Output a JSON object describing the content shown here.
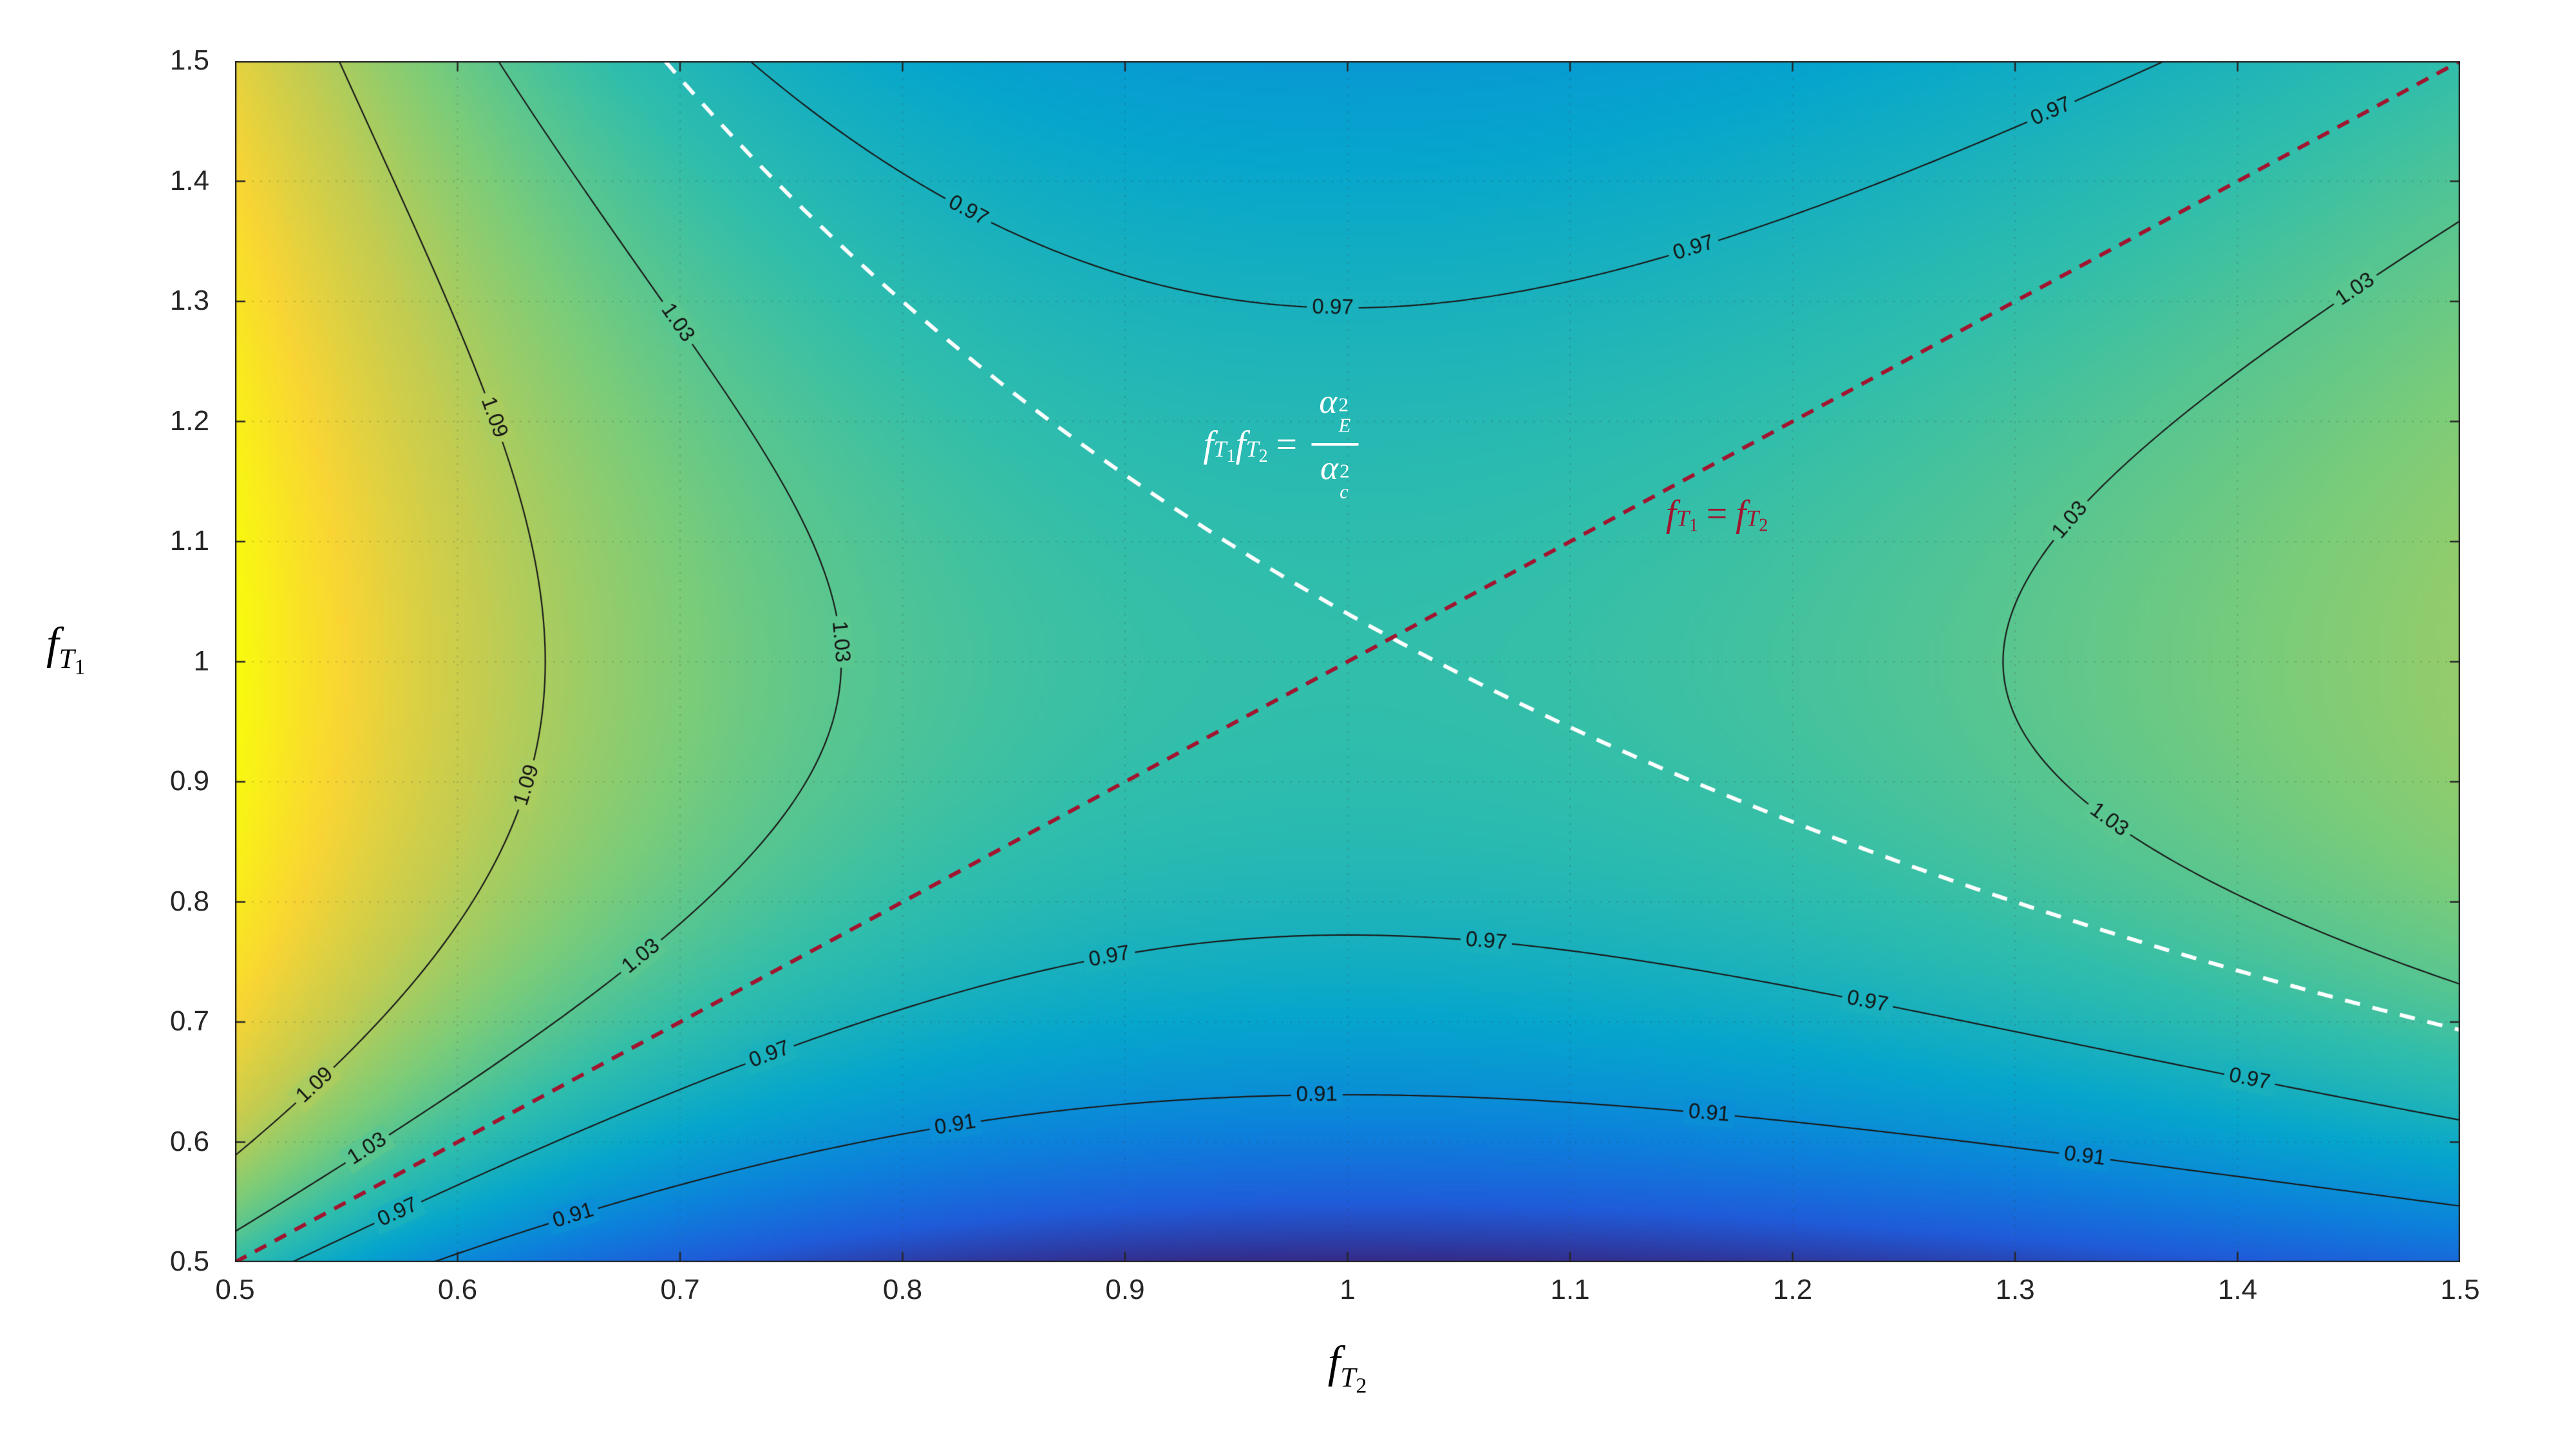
{
  "figure": {
    "background": "#ffffff",
    "frame": {
      "border_color": "#262626",
      "tick_color": "#262626",
      "tick_label_color": "#262626"
    }
  },
  "chart_data": {
    "type": "heatmap",
    "subtype": "filled-contour-with-lines",
    "title": "",
    "x_axis": {
      "label_base": "f",
      "label_sub": "T",
      "label_subsub": "2",
      "min": 0.5,
      "max": 1.5,
      "tick_values": [
        0.5,
        0.6,
        0.7,
        0.8,
        0.9,
        1,
        1.1,
        1.2,
        1.3,
        1.4,
        1.5
      ],
      "tick_labels": [
        "0.5",
        "0.6",
        "0.7",
        "0.8",
        "0.9",
        "1",
        "1.1",
        "1.2",
        "1.3",
        "1.4",
        "1.5"
      ]
    },
    "y_axis": {
      "label_base": "f",
      "label_sub": "T",
      "label_subsub": "1",
      "min": 0.5,
      "max": 1.5,
      "tick_values": [
        0.5,
        0.6,
        0.7,
        0.8,
        0.9,
        1,
        1.1,
        1.2,
        1.3,
        1.4,
        1.5
      ],
      "tick_labels": [
        "0.5",
        "0.6",
        "0.7",
        "0.8",
        "0.9",
        "1",
        "1.1",
        "1.2",
        "1.3",
        "1.4",
        "1.5"
      ]
    },
    "field": {
      "description": "f(x,y) = 1 - c*ln(x*y)*ln(y/x); saddle at (1,1) with value 1; asymptote lines y=x and x*y=k",
      "c": 0.45,
      "vmin": 0.784,
      "vmax": 1.216
    },
    "colormap": {
      "name": "parula",
      "stops": [
        "#352a87",
        "#205bd9",
        "#0c82db",
        "#06a6cd",
        "#31beab",
        "#7acc7a",
        "#c3cc51",
        "#f9d534",
        "#f9fb0e"
      ]
    },
    "grid": {
      "step": 0.1,
      "color": "rgba(60,60,60,0.22)"
    },
    "contours": {
      "levels": [
        0.91,
        0.97,
        1.03,
        1.09
      ],
      "line_color": "#1a1a1a",
      "label_color": "#141414",
      "labels": [
        {
          "text": "0.97",
          "x": 0.83,
          "y": 1.376
        },
        {
          "text": "0.97",
          "x": 0.993,
          "y": 1.285
        },
        {
          "text": "0.97",
          "x": 1.163,
          "y": 1.332
        },
        {
          "text": "0.97",
          "x": 1.321,
          "y": 1.452
        },
        {
          "text": "1.03",
          "x": 0.701,
          "y": 1.283
        },
        {
          "text": "1.09",
          "x": 0.624,
          "y": 1.205
        },
        {
          "text": "1.03",
          "x": 0.779,
          "y": 1.017
        },
        {
          "text": "1.09",
          "x": 0.648,
          "y": 0.894
        },
        {
          "text": "1.03",
          "x": 0.689,
          "y": 0.75
        },
        {
          "text": "1.09",
          "x": 0.546,
          "y": 0.641
        },
        {
          "text": "1.03",
          "x": 0.561,
          "y": 0.593
        },
        {
          "text": "0.97",
          "x": 0.576,
          "y": 0.538
        },
        {
          "text": "0.97",
          "x": 0.727,
          "y": 0.689
        },
        {
          "text": "0.91",
          "x": 0.654,
          "y": 0.535
        },
        {
          "text": "0.91",
          "x": 0.824,
          "y": 0.613
        },
        {
          "text": "0.97",
          "x": 0.892,
          "y": 0.757
        },
        {
          "text": "0.97",
          "x": 1.063,
          "y": 0.771
        },
        {
          "text": "0.91",
          "x": 0.986,
          "y": 0.647
        },
        {
          "text": "0.91",
          "x": 1.163,
          "y": 0.627
        },
        {
          "text": "0.97",
          "x": 1.236,
          "y": 0.723
        },
        {
          "text": "0.91",
          "x": 1.336,
          "y": 0.606
        },
        {
          "text": "0.97",
          "x": 1.406,
          "y": 0.654
        },
        {
          "text": "1.03",
          "x": 1.443,
          "y": 1.318
        },
        {
          "text": "1.03",
          "x": 1.307,
          "y": 1.127
        },
        {
          "text": "1.03",
          "x": 1.332,
          "y": 0.86
        }
      ]
    },
    "reference_lines": {
      "identity": {
        "equation": "y = x",
        "color": "#a2142f",
        "dash": [
          20,
          15
        ],
        "width": 6
      },
      "hyperbola": {
        "equation": "x*y = k",
        "k": 1.04,
        "color": "#ffffff",
        "dash": [
          24,
          20
        ],
        "width": 6
      }
    },
    "annotations": {
      "white": {
        "x": 0.97,
        "y": 1.181,
        "color": "#ffffff",
        "f1": "f",
        "T1": "T",
        "one": "1",
        "f2": "f",
        "T2": "T",
        "two": "2",
        "eq": "=",
        "alpha_num": "α",
        "num_sup": "2",
        "num_sub": "E",
        "alpha_den": "α",
        "den_sup": "2",
        "den_sub": "c"
      },
      "red": {
        "x": 1.166,
        "y": 1.123,
        "color": "#a2142f",
        "f1": "f",
        "T1": "T",
        "one": "1",
        "eq": "=",
        "f2": "f",
        "T2": "T",
        "two": "2"
      }
    }
  }
}
